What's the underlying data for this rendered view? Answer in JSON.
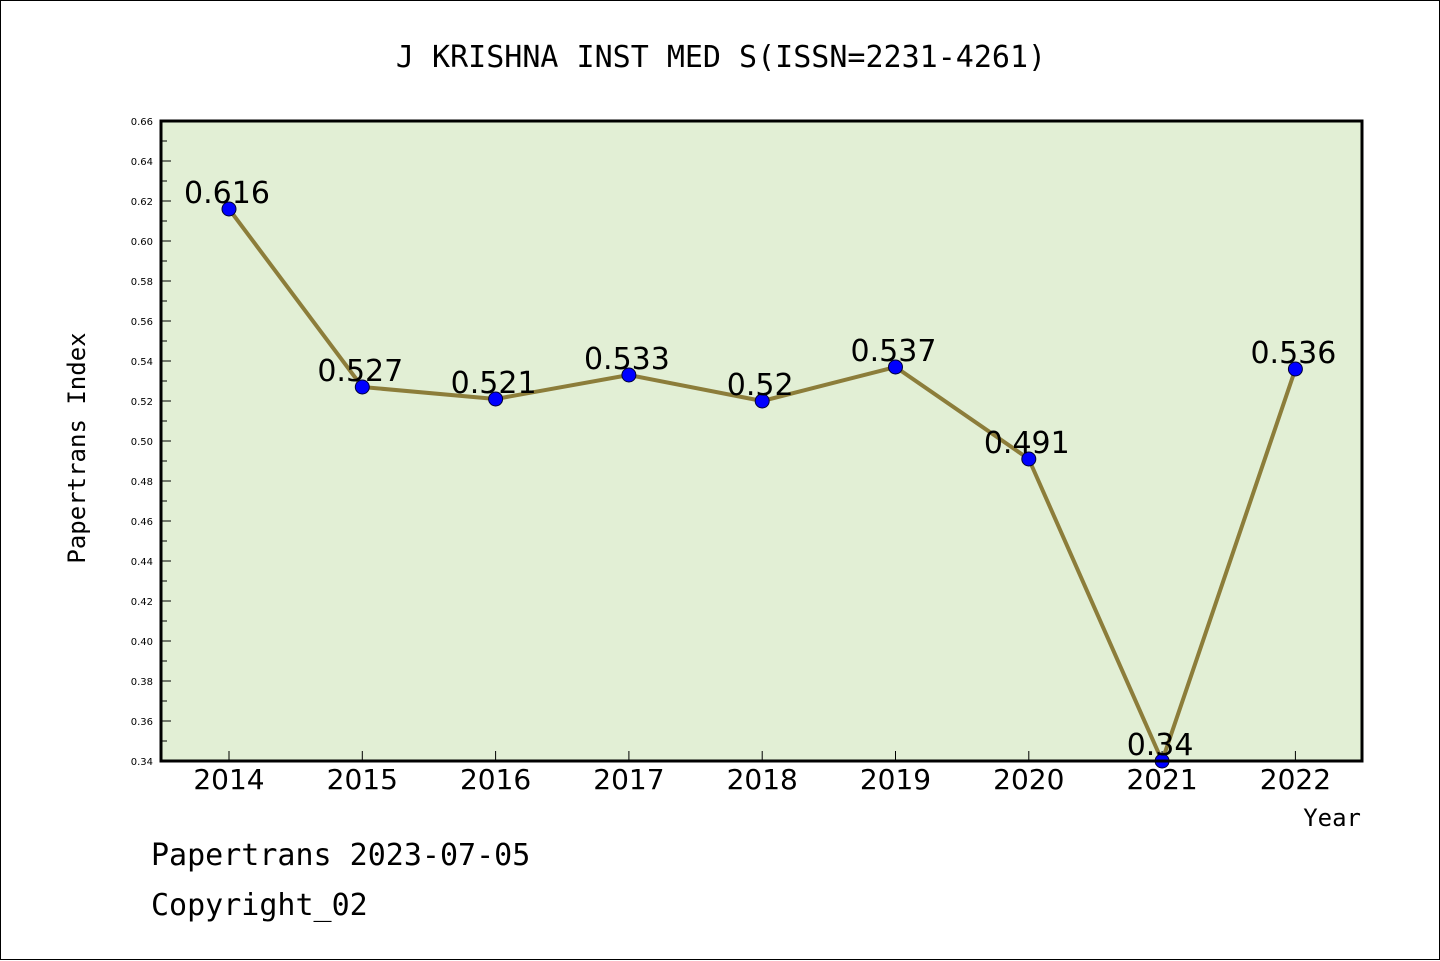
{
  "chart_data": {
    "type": "line",
    "title": "J KRISHNA INST MED S(ISSN=2231-4261)",
    "xlabel": "Year",
    "ylabel": "Papertrans Index",
    "categories": [
      "2014",
      "2015",
      "2016",
      "2017",
      "2018",
      "2019",
      "2020",
      "2021",
      "2022"
    ],
    "values": [
      0.616,
      0.527,
      0.521,
      0.533,
      0.52,
      0.537,
      0.491,
      0.34,
      0.536
    ],
    "data_labels": [
      "0.616",
      "0.527",
      "0.521",
      "0.533",
      "0.52",
      "0.537",
      "0.491",
      "0.34",
      "0.536"
    ],
    "ylim": [
      0.34,
      0.66
    ],
    "yticks": [
      "0.34",
      "0.36",
      "0.38",
      "0.40",
      "0.42",
      "0.44",
      "0.46",
      "0.48",
      "0.50",
      "0.52",
      "0.54",
      "0.56",
      "0.58",
      "0.60",
      "0.62",
      "0.64",
      "0.66"
    ],
    "grid": false,
    "colors": {
      "plot_background": "#e2efd5",
      "line": "#8c7d3a",
      "marker": "#0000ff"
    }
  },
  "footer": {
    "line1": "Papertrans 2023-07-05",
    "line2": "Copyright_02"
  }
}
